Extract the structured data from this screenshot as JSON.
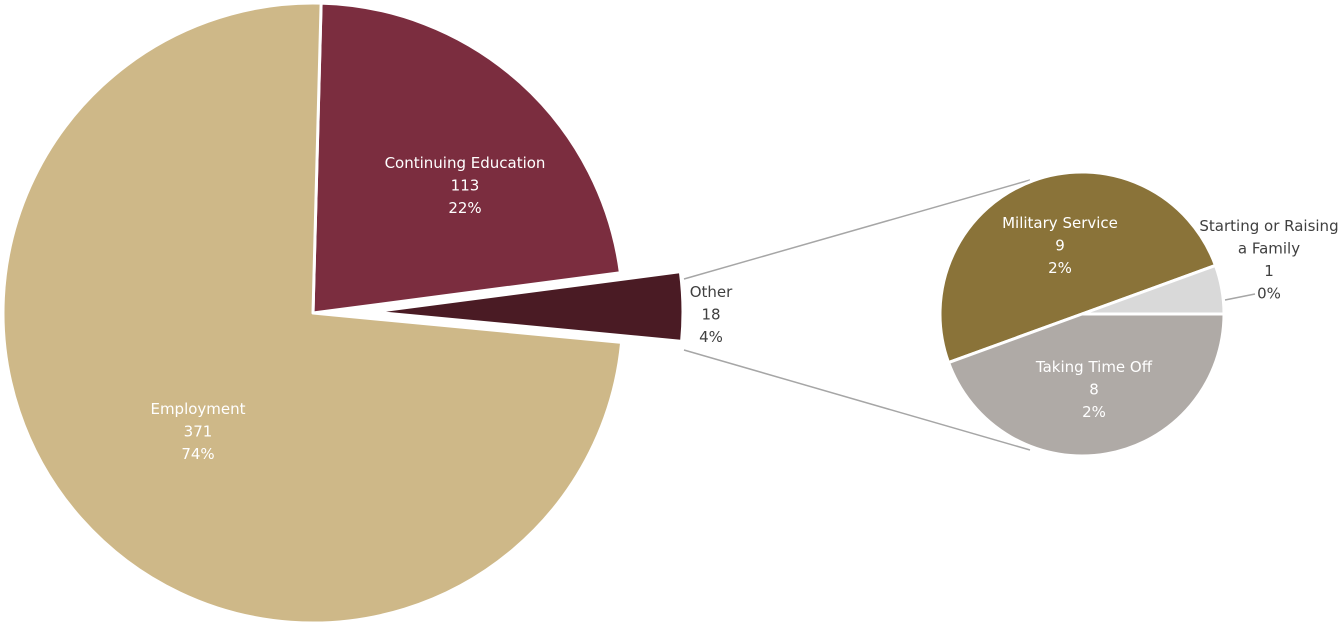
{
  "chart_data": [
    {
      "type": "pie",
      "slices": [
        {
          "label": "Continuing Education",
          "value": 113,
          "percent": "22%",
          "color": "#7B2D3F",
          "label_color": "#ffffff"
        },
        {
          "label": "Other",
          "value": 18,
          "percent": "4%",
          "color": "#4A1B24",
          "label_color": "#404040"
        },
        {
          "label": "Employment",
          "value": 371,
          "percent": "74%",
          "color": "#CEB888",
          "label_color": "#ffffff"
        }
      ]
    },
    {
      "type": "pie",
      "breakout_of": "Other",
      "slices": [
        {
          "label": "Military Service",
          "value": 9,
          "percent": "2%",
          "color": "#8A7339",
          "label_color": "#ffffff"
        },
        {
          "label": "Starting or Raising a Family",
          "label_lines": [
            "Starting or Raising",
            "a Family"
          ],
          "value": 1,
          "percent": "0%",
          "color": "#D9D9D9",
          "label_color": "#404040"
        },
        {
          "label": "Taking Time Off",
          "value": 8,
          "percent": "2%",
          "color": "#AFAAA6",
          "label_color": "#ffffff"
        }
      ]
    }
  ],
  "colors": {
    "connector": "#A6A6A6",
    "slice_border": "#ffffff"
  }
}
